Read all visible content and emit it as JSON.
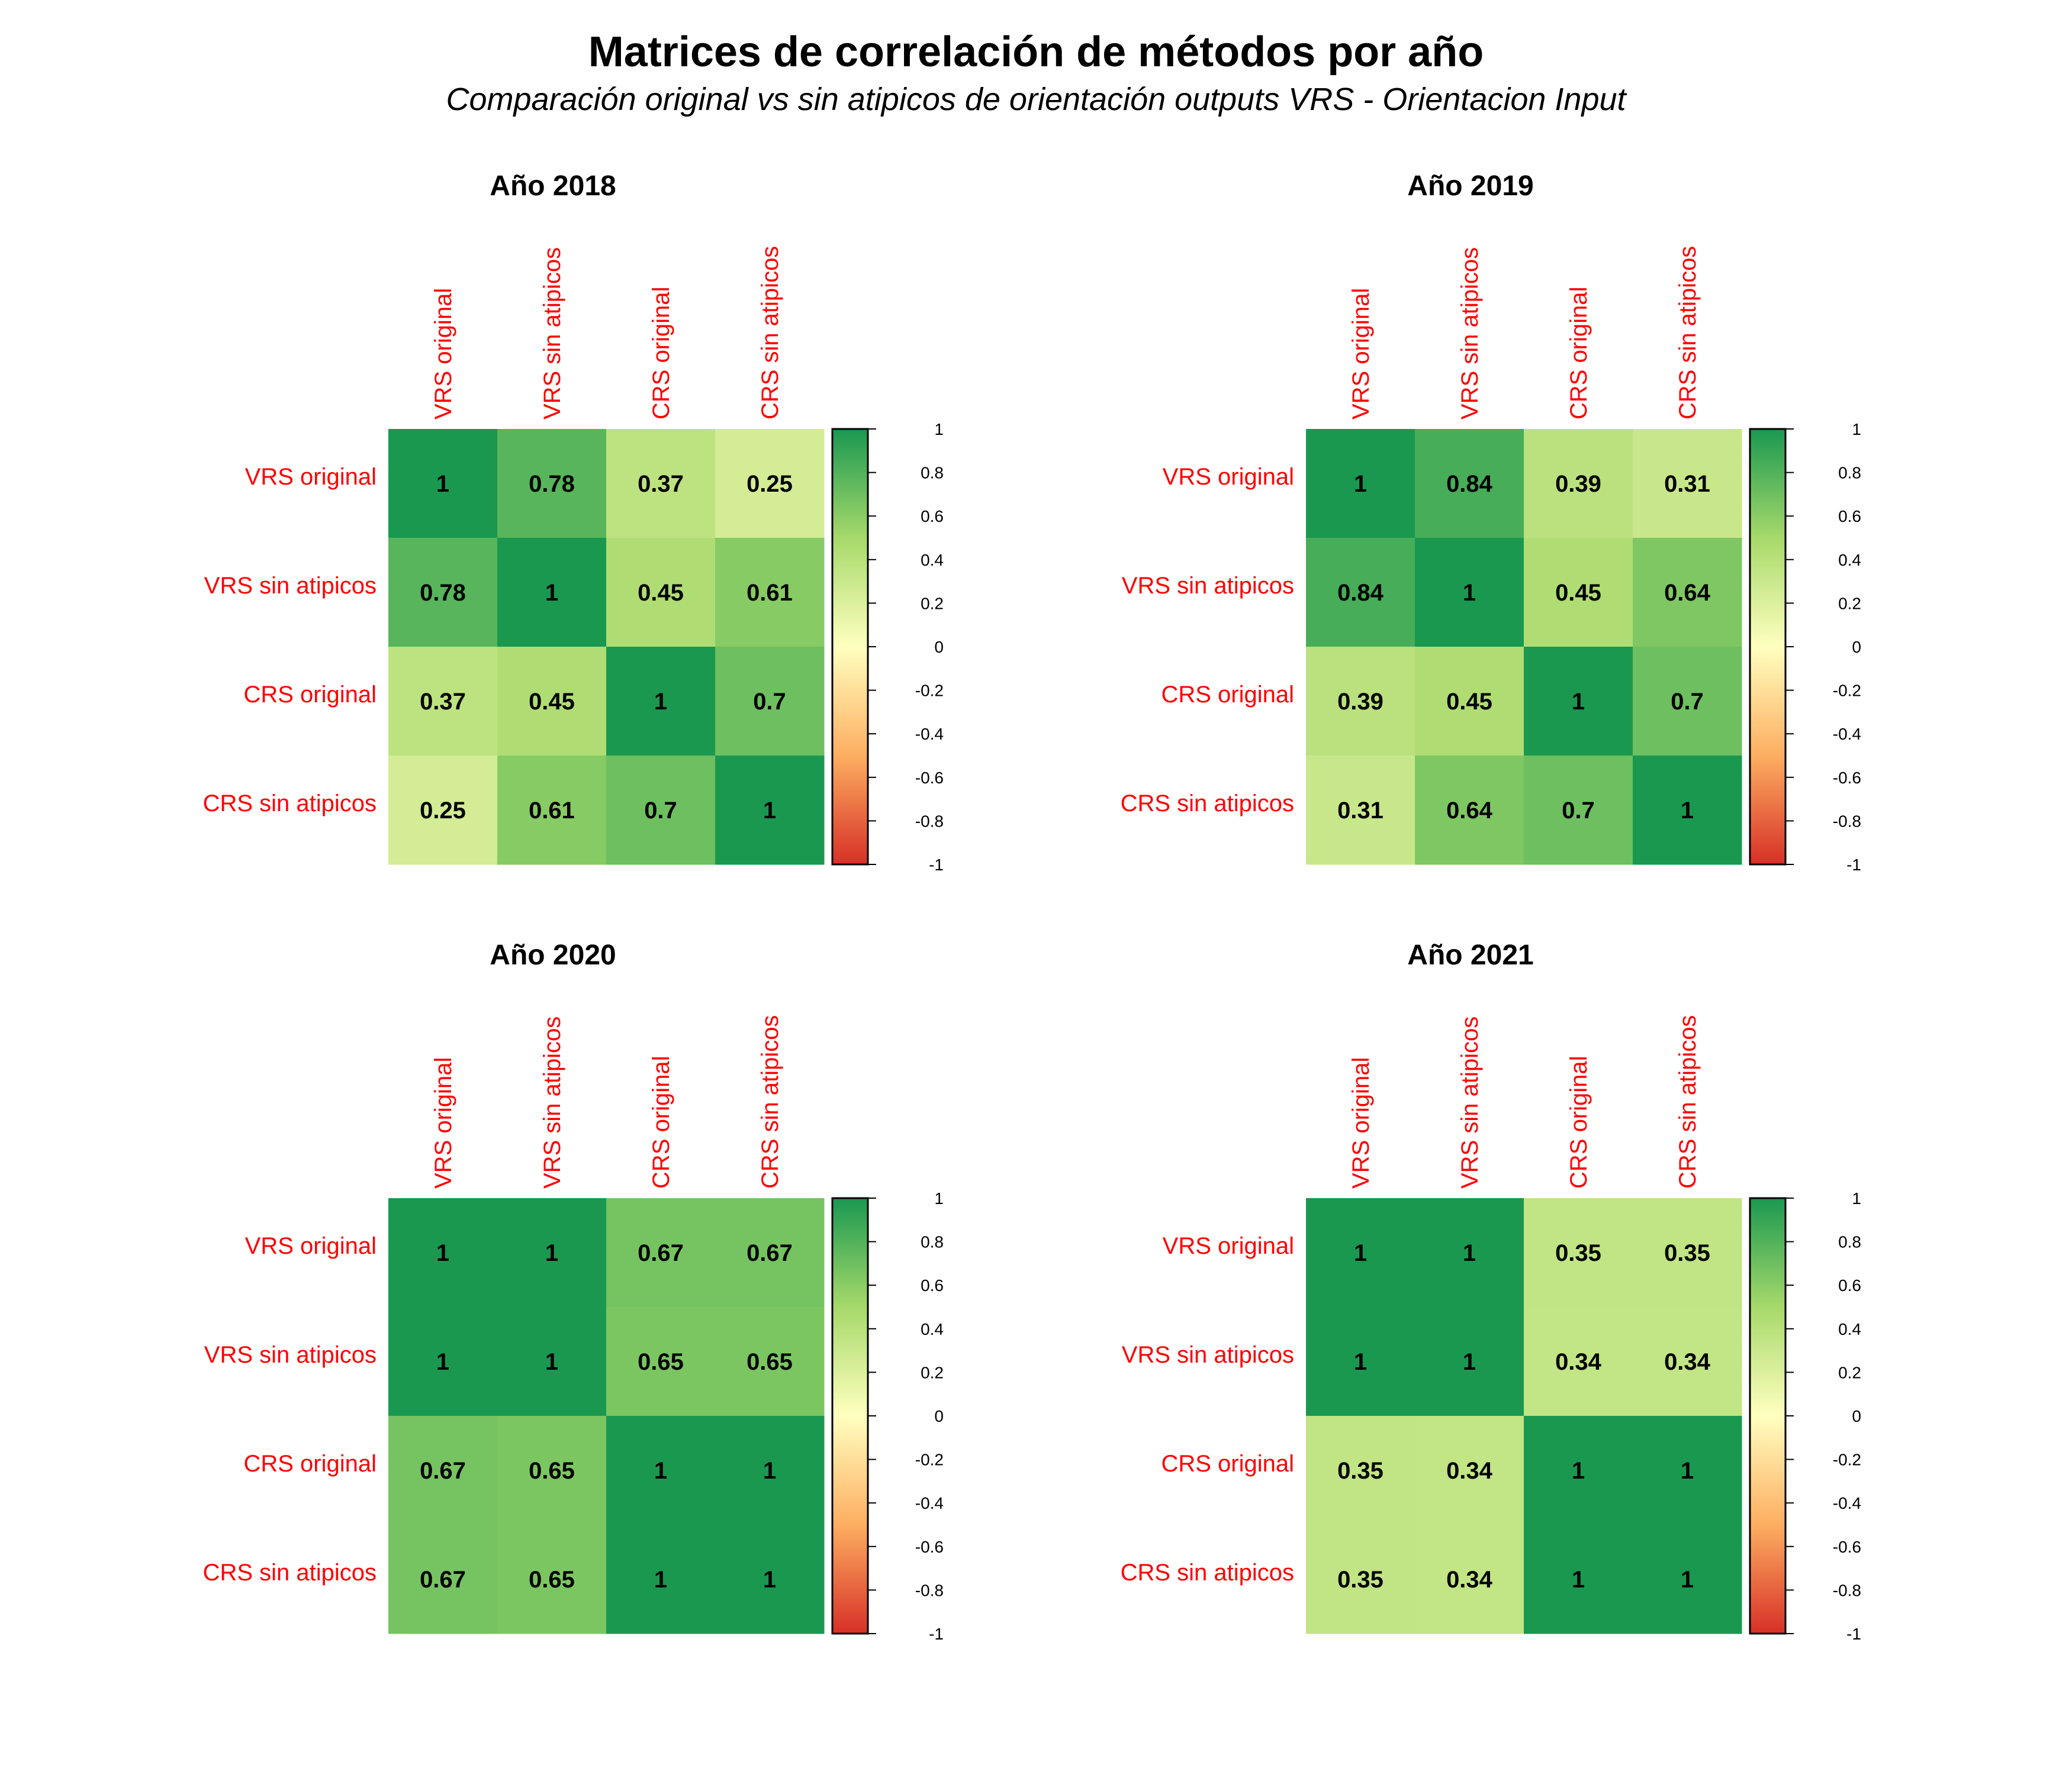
{
  "title": "Matrices de correlación de métodos por año",
  "subtitle": "Comparación original vs sin atipicos de orientación outputs VRS - Orientacion Input",
  "colors": {
    "low": "#d73027",
    "mid_low": "#fdae61",
    "mid": "#ffffbf",
    "mid_high": "#a6d96a",
    "high": "#1a9850",
    "label": "#ff0000"
  },
  "chart_data": [
    {
      "type": "heatmap",
      "title": "Año 2018",
      "rows": [
        "VRS original",
        "VRS sin atipicos",
        "CRS original",
        "CRS sin atipicos"
      ],
      "columns": [
        "VRS original",
        "VRS sin atipicos",
        "CRS original",
        "CRS sin atipicos"
      ],
      "values": [
        [
          1,
          0.78,
          0.37,
          0.25
        ],
        [
          0.78,
          1,
          0.45,
          0.61
        ],
        [
          0.37,
          0.45,
          1,
          0.7
        ],
        [
          0.25,
          0.61,
          0.7,
          1
        ]
      ],
      "value_labels": [
        [
          "1",
          "0.78",
          "0.37",
          "0.25"
        ],
        [
          "0.78",
          "1",
          "0.45",
          "0.61"
        ],
        [
          "0.37",
          "0.45",
          "1",
          "0.7"
        ],
        [
          "0.25",
          "0.61",
          "0.7",
          "1"
        ]
      ],
      "colorbar": {
        "range": [
          -1,
          1
        ],
        "ticks": [
          "1",
          "0.8",
          "0.6",
          "0.4",
          "0.2",
          "0",
          "-0.2",
          "-0.4",
          "-0.6",
          "-0.8",
          "-1"
        ]
      }
    },
    {
      "type": "heatmap",
      "title": "Año 2019",
      "rows": [
        "VRS original",
        "VRS sin atipicos",
        "CRS original",
        "CRS sin atipicos"
      ],
      "columns": [
        "VRS original",
        "VRS sin atipicos",
        "CRS original",
        "CRS sin atipicos"
      ],
      "values": [
        [
          1,
          0.84,
          0.39,
          0.31
        ],
        [
          0.84,
          1,
          0.45,
          0.64
        ],
        [
          0.39,
          0.45,
          1,
          0.7
        ],
        [
          0.31,
          0.64,
          0.7,
          1
        ]
      ],
      "value_labels": [
        [
          "1",
          "0.84",
          "0.39",
          "0.31"
        ],
        [
          "0.84",
          "1",
          "0.45",
          "0.64"
        ],
        [
          "0.39",
          "0.45",
          "1",
          "0.7"
        ],
        [
          "0.31",
          "0.64",
          "0.7",
          "1"
        ]
      ],
      "colorbar": {
        "range": [
          -1,
          1
        ],
        "ticks": [
          "1",
          "0.8",
          "0.6",
          "0.4",
          "0.2",
          "0",
          "-0.2",
          "-0.4",
          "-0.6",
          "-0.8",
          "-1"
        ]
      }
    },
    {
      "type": "heatmap",
      "title": "Año 2020",
      "rows": [
        "VRS original",
        "VRS sin atipicos",
        "CRS original",
        "CRS sin atipicos"
      ],
      "columns": [
        "VRS original",
        "VRS sin atipicos",
        "CRS original",
        "CRS sin atipicos"
      ],
      "values": [
        [
          1,
          1,
          0.67,
          0.67
        ],
        [
          1,
          1,
          0.65,
          0.65
        ],
        [
          0.67,
          0.65,
          1,
          1
        ],
        [
          0.67,
          0.65,
          1,
          1
        ]
      ],
      "value_labels": [
        [
          "1",
          "1",
          "0.67",
          "0.67"
        ],
        [
          "1",
          "1",
          "0.65",
          "0.65"
        ],
        [
          "0.67",
          "0.65",
          "1",
          "1"
        ],
        [
          "0.67",
          "0.65",
          "1",
          "1"
        ]
      ],
      "colorbar": {
        "range": [
          -1,
          1
        ],
        "ticks": [
          "1",
          "0.8",
          "0.6",
          "0.4",
          "0.2",
          "0",
          "-0.2",
          "-0.4",
          "-0.6",
          "-0.8",
          "-1"
        ]
      }
    },
    {
      "type": "heatmap",
      "title": "Año 2021",
      "rows": [
        "VRS original",
        "VRS sin atipicos",
        "CRS original",
        "CRS sin atipicos"
      ],
      "columns": [
        "VRS original",
        "VRS sin atipicos",
        "CRS original",
        "CRS sin atipicos"
      ],
      "values": [
        [
          1,
          1,
          0.35,
          0.35
        ],
        [
          1,
          1,
          0.34,
          0.34
        ],
        [
          0.35,
          0.34,
          1,
          1
        ],
        [
          0.35,
          0.34,
          1,
          1
        ]
      ],
      "value_labels": [
        [
          "1",
          "1",
          "0.35",
          "0.35"
        ],
        [
          "1",
          "1",
          "0.34",
          "0.34"
        ],
        [
          "0.35",
          "0.34",
          "1",
          "1"
        ],
        [
          "0.35",
          "0.34",
          "1",
          "1"
        ]
      ],
      "colorbar": {
        "range": [
          -1,
          1
        ],
        "ticks": [
          "1",
          "0.8",
          "0.6",
          "0.4",
          "0.2",
          "0",
          "-0.2",
          "-0.4",
          "-0.6",
          "-0.8",
          "-1"
        ]
      }
    }
  ]
}
